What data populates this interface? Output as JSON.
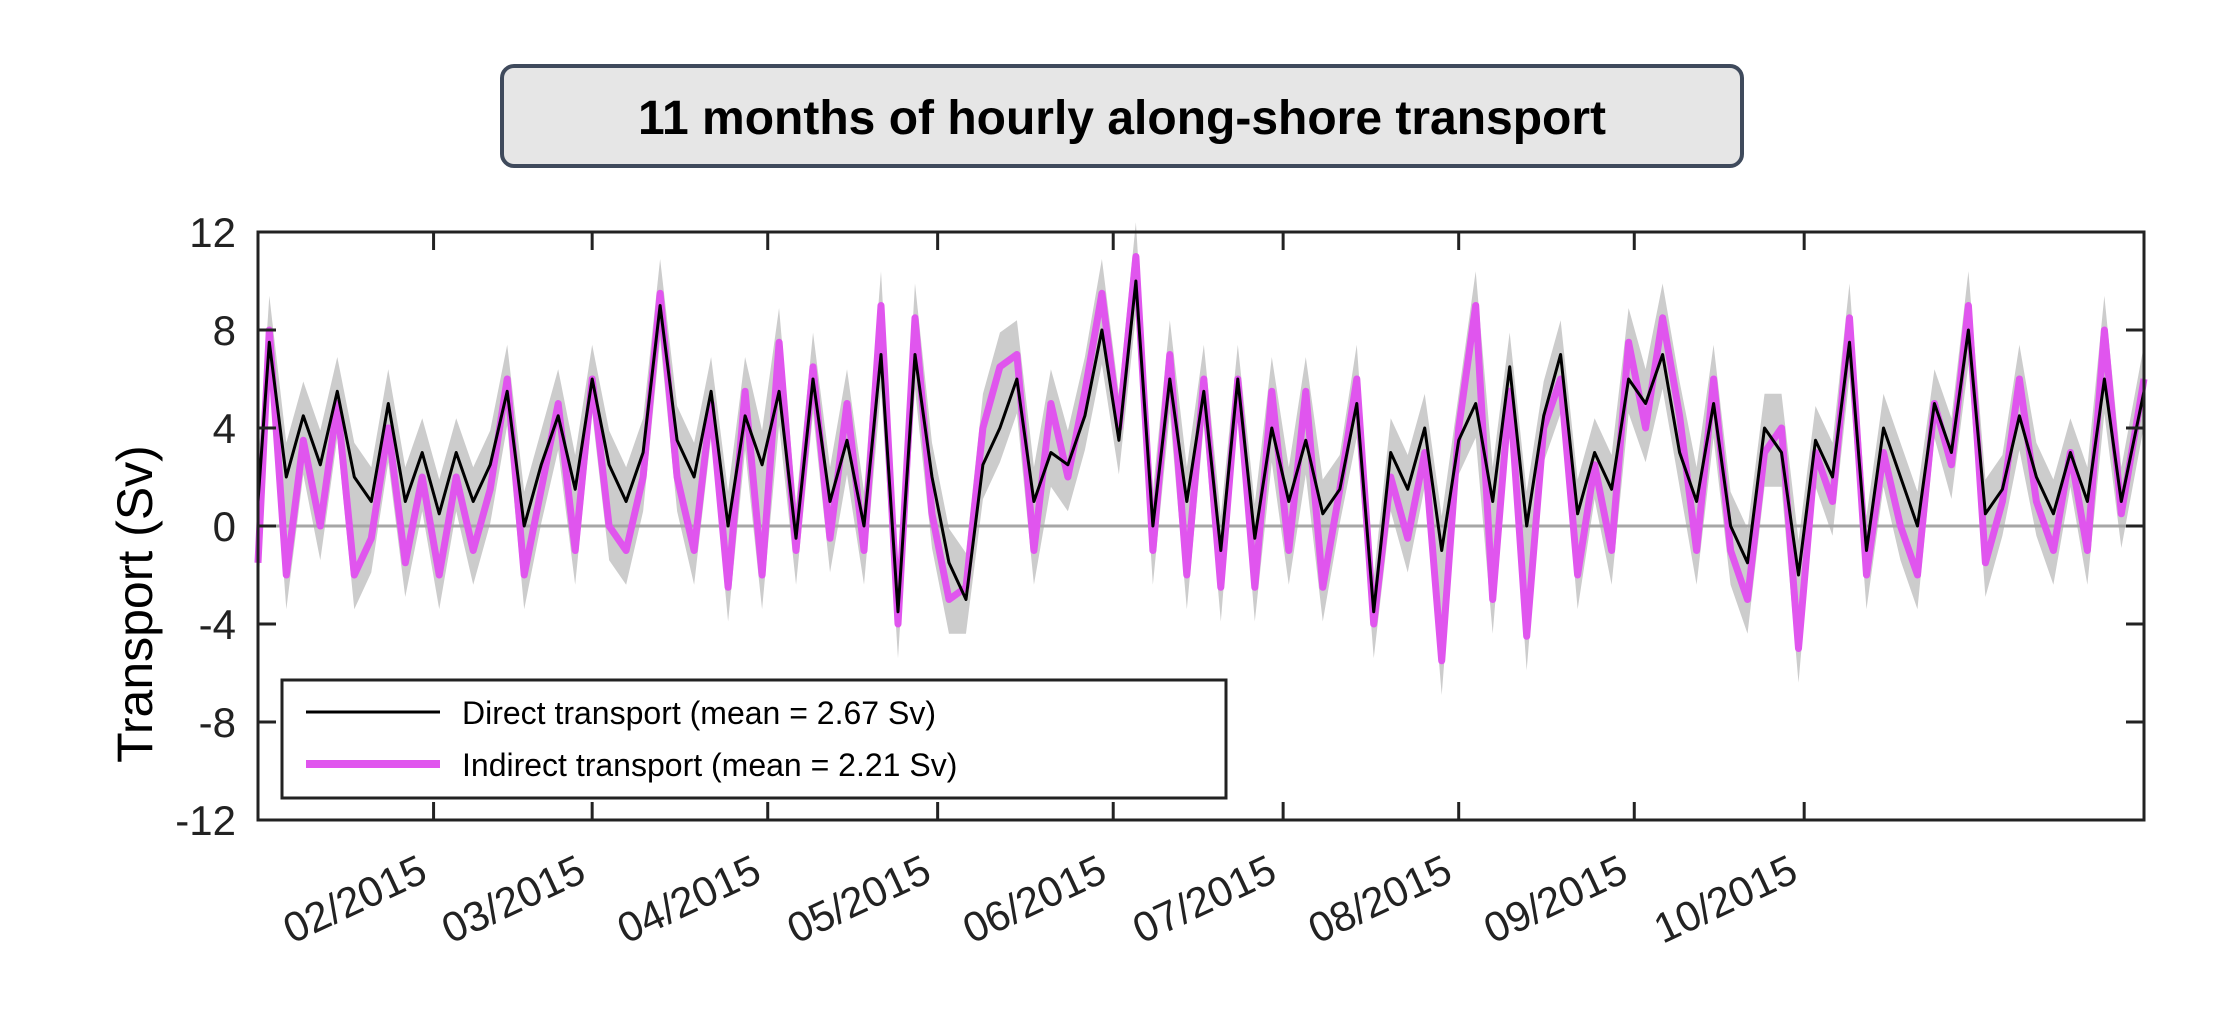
{
  "chart_data": {
    "type": "line",
    "title": "11 months of hourly along-shore transport",
    "xlabel": "",
    "ylabel": "Transport (Sv)",
    "ylim": [
      -12,
      12
    ],
    "yticks": [
      -12,
      -8,
      -4,
      0,
      4,
      8,
      12
    ],
    "yticklabels": [
      "-12",
      "-8",
      "-4",
      "0",
      "4",
      "8",
      "12"
    ],
    "xlim": [
      "2015-01-01",
      "2015-11-30"
    ],
    "xticks": [
      "2015-02-01",
      "2015-03-01",
      "2015-04-01",
      "2015-05-01",
      "2015-06-01",
      "2015-07-01",
      "2015-08-01",
      "2015-09-01",
      "2015-10-01"
    ],
    "xticklabels": [
      "02/2015",
      "03/2015",
      "04/2015",
      "05/2015",
      "06/2015",
      "07/2015",
      "08/2015",
      "09/2015",
      "10/2015"
    ],
    "grid": false,
    "zero_line": true,
    "legend_position": "lower-left",
    "series": [
      {
        "name": "Direct transport (mean = 2.67 Sv)",
        "color": "#000000",
        "x": [
          "2015-01-01",
          "2015-01-03",
          "2015-01-06",
          "2015-01-09",
          "2015-01-12",
          "2015-01-15",
          "2015-01-18",
          "2015-01-21",
          "2015-01-24",
          "2015-01-27",
          "2015-01-30",
          "2015-02-02",
          "2015-02-05",
          "2015-02-08",
          "2015-02-11",
          "2015-02-14",
          "2015-02-17",
          "2015-02-20",
          "2015-02-23",
          "2015-02-26",
          "2015-03-01",
          "2015-03-04",
          "2015-03-07",
          "2015-03-10",
          "2015-03-13",
          "2015-03-16",
          "2015-03-19",
          "2015-03-22",
          "2015-03-25",
          "2015-03-28",
          "2015-03-31",
          "2015-04-03",
          "2015-04-06",
          "2015-04-09",
          "2015-04-12",
          "2015-04-15",
          "2015-04-18",
          "2015-04-21",
          "2015-04-24",
          "2015-04-27",
          "2015-04-30",
          "2015-05-03",
          "2015-05-06",
          "2015-05-09",
          "2015-05-12",
          "2015-05-15",
          "2015-05-18",
          "2015-05-21",
          "2015-05-24",
          "2015-05-27",
          "2015-05-30",
          "2015-06-02",
          "2015-06-05",
          "2015-06-08",
          "2015-06-11",
          "2015-06-14",
          "2015-06-17",
          "2015-06-20",
          "2015-06-23",
          "2015-06-26",
          "2015-06-29",
          "2015-07-02",
          "2015-07-05",
          "2015-07-08",
          "2015-07-11",
          "2015-07-14",
          "2015-07-17",
          "2015-07-20",
          "2015-07-23",
          "2015-07-26",
          "2015-07-29",
          "2015-08-01",
          "2015-08-04",
          "2015-08-07",
          "2015-08-10",
          "2015-08-13",
          "2015-08-16",
          "2015-08-19",
          "2015-08-22",
          "2015-08-25",
          "2015-08-28",
          "2015-08-31",
          "2015-09-03",
          "2015-09-06",
          "2015-09-09",
          "2015-09-12",
          "2015-09-15",
          "2015-09-18",
          "2015-09-21",
          "2015-09-24",
          "2015-09-27",
          "2015-09-30",
          "2015-10-03",
          "2015-10-06",
          "2015-10-09",
          "2015-10-12",
          "2015-10-15",
          "2015-10-18",
          "2015-10-21",
          "2015-10-24",
          "2015-10-27",
          "2015-10-30",
          "2015-11-02",
          "2015-11-05",
          "2015-11-08",
          "2015-11-11",
          "2015-11-14",
          "2015-11-17",
          "2015-11-20",
          "2015-11-23",
          "2015-11-26",
          "2015-11-30"
        ],
        "y": [
          1.0,
          7.5,
          2.0,
          4.5,
          2.5,
          5.5,
          2.0,
          1.0,
          5.0,
          1.0,
          3.0,
          0.5,
          3.0,
          1.0,
          2.5,
          5.5,
          0.0,
          2.5,
          4.5,
          1.5,
          6.0,
          2.5,
          1.0,
          3.0,
          9.0,
          3.5,
          2.0,
          5.5,
          0.0,
          4.5,
          2.5,
          5.5,
          -0.5,
          6.0,
          1.0,
          3.5,
          0.0,
          7.0,
          -3.5,
          7.0,
          2.0,
          -1.5,
          -3.0,
          2.5,
          4.0,
          6.0,
          1.0,
          3.0,
          2.5,
          4.5,
          8.0,
          3.5,
          10.0,
          0.0,
          6.0,
          1.0,
          5.5,
          -1.0,
          6.0,
          -0.5,
          4.0,
          1.0,
          3.5,
          0.5,
          1.5,
          5.0,
          -3.5,
          3.0,
          1.5,
          4.0,
          -1.0,
          3.5,
          5.0,
          1.0,
          6.5,
          0.0,
          4.5,
          7.0,
          0.5,
          3.0,
          1.5,
          6.0,
          5.0,
          7.0,
          3.0,
          1.0,
          5.0,
          0.0,
          -1.5,
          4.0,
          3.0,
          -2.0,
          3.5,
          2.0,
          7.5,
          -1.0,
          4.0,
          2.0,
          0.0,
          5.0,
          3.0,
          8.0,
          0.5,
          1.5,
          4.5,
          2.0,
          0.5,
          3.0,
          1.0,
          6.0,
          1.0,
          5.5
        ]
      },
      {
        "name": "Indirect transport (mean = 2.21 Sv)",
        "color": "#e055ee",
        "x": [
          "2015-01-01",
          "2015-01-03",
          "2015-01-06",
          "2015-01-09",
          "2015-01-12",
          "2015-01-15",
          "2015-01-18",
          "2015-01-21",
          "2015-01-24",
          "2015-01-27",
          "2015-01-30",
          "2015-02-02",
          "2015-02-05",
          "2015-02-08",
          "2015-02-11",
          "2015-02-14",
          "2015-02-17",
          "2015-02-20",
          "2015-02-23",
          "2015-02-26",
          "2015-03-01",
          "2015-03-04",
          "2015-03-07",
          "2015-03-10",
          "2015-03-13",
          "2015-03-16",
          "2015-03-19",
          "2015-03-22",
          "2015-03-25",
          "2015-03-28",
          "2015-03-31",
          "2015-04-03",
          "2015-04-06",
          "2015-04-09",
          "2015-04-12",
          "2015-04-15",
          "2015-04-18",
          "2015-04-21",
          "2015-04-24",
          "2015-04-27",
          "2015-04-30",
          "2015-05-03",
          "2015-05-06",
          "2015-05-09",
          "2015-05-12",
          "2015-05-15",
          "2015-05-18",
          "2015-05-21",
          "2015-05-24",
          "2015-05-27",
          "2015-05-30",
          "2015-06-02",
          "2015-06-05",
          "2015-06-08",
          "2015-06-11",
          "2015-06-14",
          "2015-06-17",
          "2015-06-20",
          "2015-06-23",
          "2015-06-26",
          "2015-06-29",
          "2015-07-02",
          "2015-07-05",
          "2015-07-08",
          "2015-07-11",
          "2015-07-14",
          "2015-07-17",
          "2015-07-20",
          "2015-07-23",
          "2015-07-26",
          "2015-07-29",
          "2015-08-01",
          "2015-08-04",
          "2015-08-07",
          "2015-08-10",
          "2015-08-13",
          "2015-08-16",
          "2015-08-19",
          "2015-08-22",
          "2015-08-25",
          "2015-08-28",
          "2015-08-31",
          "2015-09-03",
          "2015-09-06",
          "2015-09-09",
          "2015-09-12",
          "2015-09-15",
          "2015-09-18",
          "2015-09-21",
          "2015-09-24",
          "2015-09-27",
          "2015-09-30",
          "2015-10-03",
          "2015-10-06",
          "2015-10-09",
          "2015-10-12",
          "2015-10-15",
          "2015-10-18",
          "2015-10-21",
          "2015-10-24",
          "2015-10-27",
          "2015-10-30",
          "2015-11-02",
          "2015-11-05",
          "2015-11-08",
          "2015-11-11",
          "2015-11-14",
          "2015-11-17",
          "2015-11-20",
          "2015-11-23",
          "2015-11-26",
          "2015-11-30"
        ],
        "y": [
          -1.5,
          8.0,
          -2.0,
          3.5,
          0.0,
          5.0,
          -2.0,
          -0.5,
          4.0,
          -1.5,
          2.0,
          -2.0,
          2.0,
          -1.0,
          1.5,
          6.0,
          -2.0,
          1.5,
          5.0,
          -1.0,
          6.0,
          0.0,
          -1.0,
          2.0,
          9.5,
          2.0,
          -1.0,
          5.0,
          -2.5,
          5.5,
          -2.0,
          7.5,
          -1.0,
          6.5,
          -0.5,
          5.0,
          -1.0,
          9.0,
          -4.0,
          8.5,
          0.5,
          -3.0,
          -2.5,
          4.0,
          6.5,
          7.0,
          -1.0,
          5.0,
          2.0,
          5.5,
          9.5,
          4.0,
          11.0,
          -1.0,
          7.0,
          -2.0,
          6.0,
          -2.5,
          6.0,
          -2.5,
          5.5,
          -1.0,
          5.5,
          -2.5,
          1.5,
          6.0,
          -4.0,
          2.0,
          -0.5,
          3.0,
          -5.5,
          4.0,
          9.0,
          -3.0,
          5.5,
          -4.5,
          4.0,
          6.0,
          -2.0,
          2.5,
          -1.0,
          7.5,
          4.0,
          8.5,
          4.5,
          -1.0,
          6.0,
          -1.0,
          -3.0,
          3.0,
          4.0,
          -5.0,
          3.0,
          1.0,
          8.5,
          -2.0,
          3.0,
          0.0,
          -2.0,
          5.0,
          2.5,
          9.0,
          -1.5,
          1.0,
          6.0,
          1.0,
          -1.0,
          3.0,
          -1.0,
          8.0,
          0.5,
          6.0
        ]
      }
    ],
    "uncertainty_band": {
      "color": "#cccccc"
    }
  }
}
